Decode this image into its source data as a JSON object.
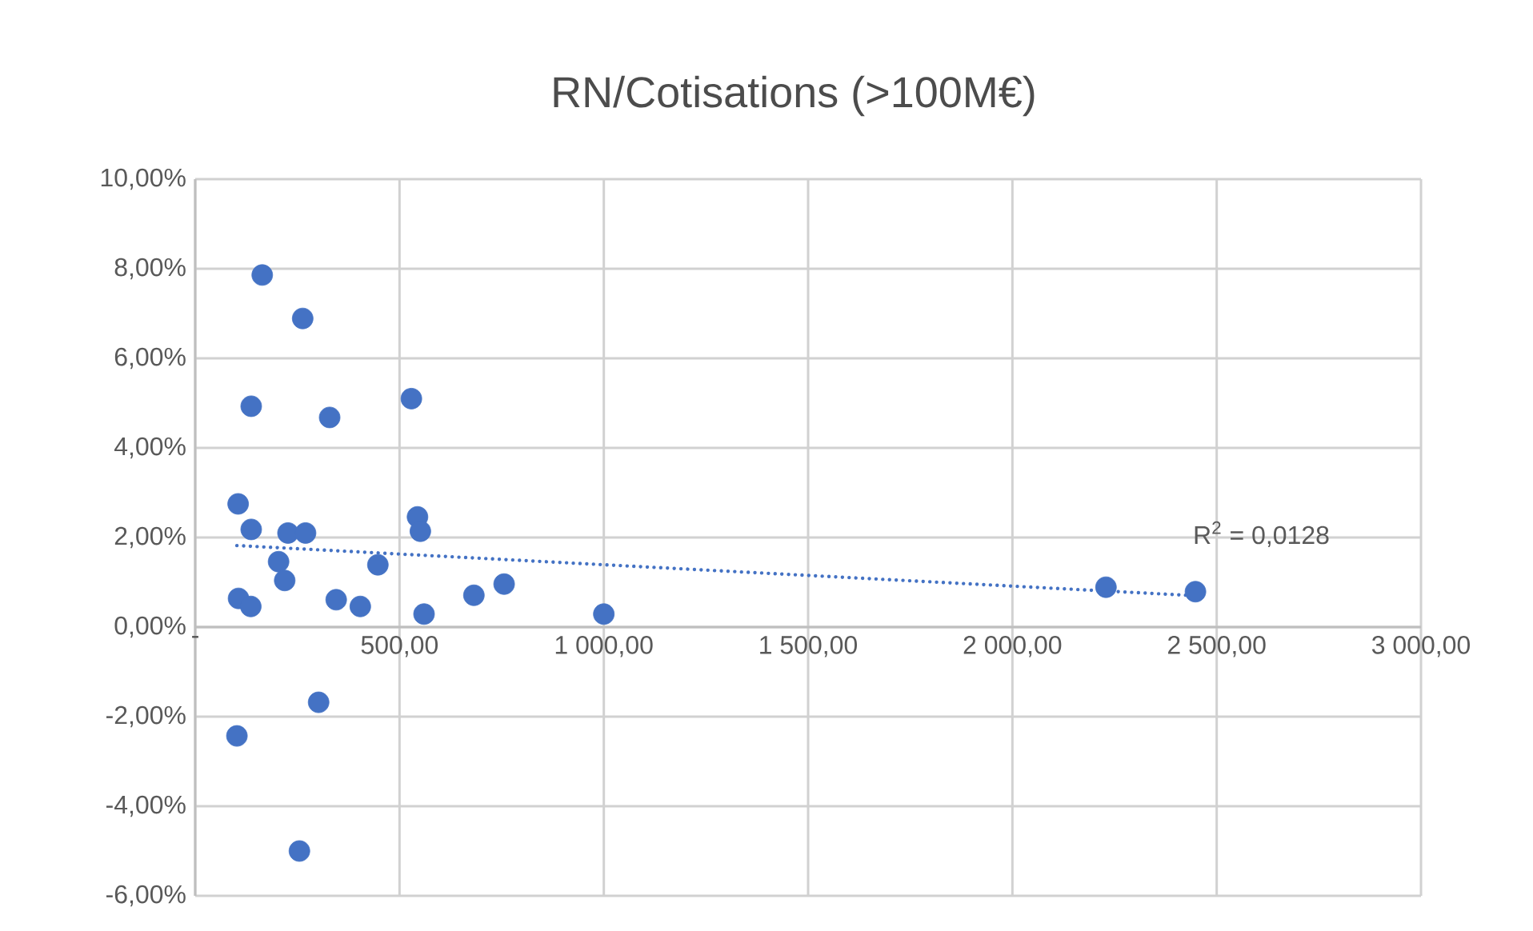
{
  "chart_data": {
    "type": "scatter",
    "title": "RN/Cotisations (>100M€)",
    "annotations": [
      "R$^{2}$ = 0,0128"
    ],
    "series": [
      {
        "color": "#4472c4",
        "x": [
          164,
          263,
          137,
          329,
          529,
          105,
          137,
          227,
          270,
          544,
          551,
          204,
          219,
          447,
          106,
          136,
          345,
          404,
          560,
          682,
          756,
          1000,
          302,
          102,
          255,
          2229,
          2448
        ],
        "values": [
          7.86,
          6.89,
          4.93,
          4.68,
          5.1,
          2.75,
          2.18,
          2.1,
          2.1,
          2.46,
          2.14,
          1.46,
          1.04,
          1.39,
          0.64,
          0.46,
          0.61,
          0.46,
          0.29,
          0.71,
          0.96,
          0.29,
          -1.68,
          -2.43,
          -5.0,
          0.89,
          0.79
        ]
      },
      {
        "type": "line",
        "color": "#4472c4",
        "marker": "none",
        "line_style": "dotted",
        "x": [
          102,
          2448
        ],
        "values": [
          1.82,
          0.7
        ]
      }
    ],
    "marker": "circle",
    "xlim": [
      0,
      3000
    ],
    "ylim": [
      -6,
      10
    ],
    "xticks": [
      {
        "value": 0,
        "label": "-"
      },
      {
        "value": 500,
        "label": "500,00"
      },
      {
        "value": 1000,
        "label": "1 000,00"
      },
      {
        "value": 1500,
        "label": "1 500,00"
      },
      {
        "value": 2000,
        "label": "2 000,00"
      },
      {
        "value": 2500,
        "label": "2 500,00"
      },
      {
        "value": 3000,
        "label": "3 000,00"
      }
    ],
    "yticks": [
      {
        "value": -6,
        "label": "-6,00%"
      },
      {
        "value": -4,
        "label": "-4,00%"
      },
      {
        "value": -2,
        "label": "-2,00%"
      },
      {
        "value": 0,
        "label": "0,00%"
      },
      {
        "value": 2,
        "label": "2,00%"
      },
      {
        "value": 4,
        "label": "4,00%"
      },
      {
        "value": 6,
        "label": "6,00%"
      },
      {
        "value": 8,
        "label": "8,00%"
      },
      {
        "value": 10,
        "label": "10,00%"
      }
    ],
    "grid": true
  }
}
